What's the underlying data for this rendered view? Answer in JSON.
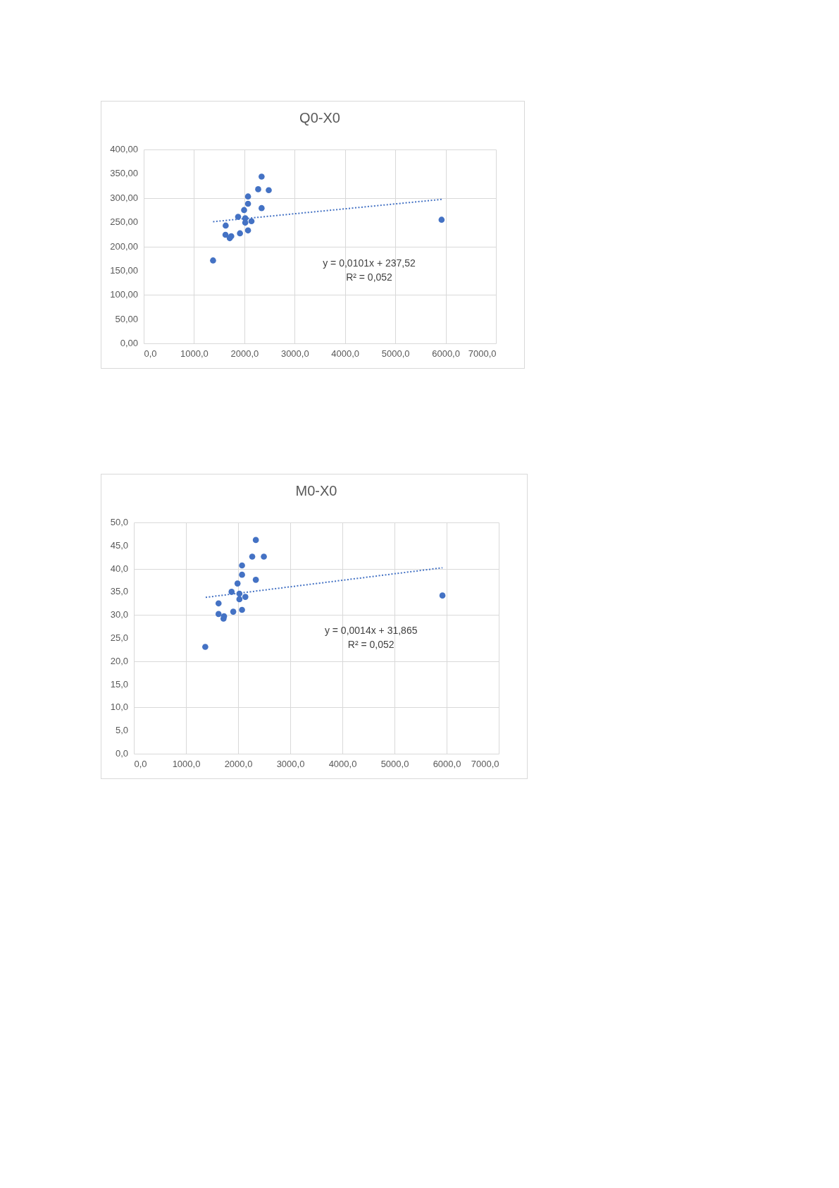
{
  "chart_data": [
    {
      "type": "scatter",
      "title": "Q0-X0",
      "marker": "circle",
      "grid": true,
      "xlim": [
        0,
        7000
      ],
      "xticks": [
        {
          "value": 0,
          "label": "0,0"
        },
        {
          "value": 1000,
          "label": "1000,0"
        },
        {
          "value": 2000,
          "label": "2000,0"
        },
        {
          "value": 3000,
          "label": "3000,0"
        },
        {
          "value": 4000,
          "label": "4000,0"
        },
        {
          "value": 5000,
          "label": "5000,0"
        },
        {
          "value": 6000,
          "label": "6000,0"
        },
        {
          "value": 7000,
          "label": "7000,0"
        }
      ],
      "ylim": [
        0,
        400
      ],
      "yticks": [
        {
          "value": 0,
          "label": "0,00"
        },
        {
          "value": 50,
          "label": "50,00"
        },
        {
          "value": 100,
          "label": "100,00"
        },
        {
          "value": 150,
          "label": "150,00"
        },
        {
          "value": 200,
          "label": "200,00"
        },
        {
          "value": 250,
          "label": "250,00"
        },
        {
          "value": 300,
          "label": "300,00"
        },
        {
          "value": 350,
          "label": "350,00"
        },
        {
          "value": 400,
          "label": "400,00"
        }
      ],
      "series": [
        {
          "color": "#4472c4",
          "x": [
            1378,
            1629,
            1625,
            1710,
            1740,
            1913,
            1876,
            1995,
            2018,
            2018,
            2142,
            2073,
            2073,
            2073,
            2275,
            2343,
            2485,
            2343,
            5920
          ],
          "values": [
            171,
            243,
            224,
            217,
            221,
            227,
            261,
            275,
            258,
            249,
            252,
            233,
            288,
            303,
            318,
            344,
            316,
            279,
            255
          ]
        },
        {
          "type": "line",
          "color": "#4472c4",
          "line_style": "dotted",
          "marker": "none",
          "x": [
            1378,
            5920
          ],
          "values": [
            251,
            297
          ]
        }
      ],
      "annotations": [
        "y = 0,0101x + 237,52",
        "R² = 0,052"
      ]
    },
    {
      "type": "scatter",
      "title": "M0-X0",
      "marker": "circle",
      "grid": true,
      "xlim": [
        0,
        7000
      ],
      "xticks": [
        {
          "value": 0,
          "label": "0,0"
        },
        {
          "value": 1000,
          "label": "1000,0"
        },
        {
          "value": 2000,
          "label": "2000,0"
        },
        {
          "value": 3000,
          "label": "3000,0"
        },
        {
          "value": 4000,
          "label": "4000,0"
        },
        {
          "value": 5000,
          "label": "5000,0"
        },
        {
          "value": 6000,
          "label": "6000,0"
        },
        {
          "value": 7000,
          "label": "7000,0"
        }
      ],
      "ylim": [
        0,
        50
      ],
      "yticks": [
        {
          "value": 0,
          "label": "0,0"
        },
        {
          "value": 5,
          "label": "5,0"
        },
        {
          "value": 10,
          "label": "10,0"
        },
        {
          "value": 15,
          "label": "15,0"
        },
        {
          "value": 20,
          "label": "20,0"
        },
        {
          "value": 25,
          "label": "25,0"
        },
        {
          "value": 30,
          "label": "30,0"
        },
        {
          "value": 35,
          "label": "35,0"
        },
        {
          "value": 40,
          "label": "40,0"
        },
        {
          "value": 45,
          "label": "45,0"
        },
        {
          "value": 50,
          "label": "50,0"
        }
      ],
      "series": [
        {
          "color": "#4472c4",
          "x": [
            1370,
            1625,
            1625,
            1720,
            1730,
            1907,
            1875,
            1989,
            2025,
            2025,
            2139,
            2075,
            2075,
            2075,
            2271,
            2340,
            2494,
            2340,
            5920
          ],
          "values": [
            23.1,
            32.5,
            30.2,
            29.2,
            29.7,
            30.7,
            35.0,
            36.8,
            34.6,
            33.4,
            33.9,
            31.1,
            38.7,
            40.7,
            42.6,
            46.2,
            42.6,
            37.6,
            34.2
          ]
        },
        {
          "type": "line",
          "color": "#4472c4",
          "line_style": "dotted",
          "x": [
            1378,
            5920
          ],
          "marker": "none",
          "values": [
            33.8,
            40.2
          ]
        }
      ],
      "annotations": [
        "y = 0,0014x + 31,865",
        "R² = 0,052"
      ]
    }
  ]
}
